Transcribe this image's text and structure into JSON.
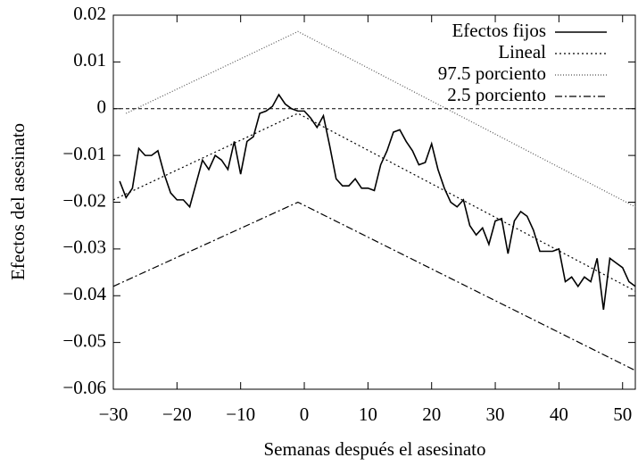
{
  "chart_data": {
    "type": "line",
    "xlabel": "Semanas después el asesinato",
    "ylabel": "Efectos del asesinato",
    "xlim": [
      -30,
      52
    ],
    "ylim": [
      -0.06,
      0.02
    ],
    "xticks": [
      {
        "value": -30,
        "label": "−30"
      },
      {
        "value": -20,
        "label": "−20"
      },
      {
        "value": -10,
        "label": "−10"
      },
      0,
      10,
      20,
      30,
      40,
      50
    ],
    "yticks": [
      {
        "value": -0.06,
        "label": "−0.06"
      },
      {
        "value": -0.05,
        "label": "−0.05"
      },
      {
        "value": -0.04,
        "label": "−0.04"
      },
      {
        "value": -0.03,
        "label": "−0.03"
      },
      {
        "value": -0.02,
        "label": "−0.02"
      },
      {
        "value": -0.01,
        "label": "−0.01"
      },
      0,
      0.01,
      0.02
    ],
    "hline": 0,
    "legend": "upper right",
    "series": [
      {
        "name": "Efectos fijos",
        "color": "#000000",
        "dash": "none",
        "x": [
          -29,
          -28,
          -27,
          -26,
          -25,
          -24,
          -23,
          -22,
          -21,
          -20,
          -19,
          -18,
          -17,
          -16,
          -15,
          -14,
          -13,
          -12,
          -11,
          -10,
          -9,
          -8,
          -7,
          -6,
          -5,
          -4,
          -3,
          -2,
          -1,
          0,
          1,
          2,
          3,
          4,
          5,
          6,
          7,
          8,
          9,
          10,
          11,
          12,
          13,
          14,
          15,
          16,
          17,
          18,
          19,
          20,
          21,
          22,
          23,
          24,
          25,
          26,
          27,
          28,
          29,
          30,
          31,
          32,
          33,
          34,
          35,
          36,
          37,
          38,
          39,
          40,
          41,
          42,
          43,
          44,
          45,
          46,
          47,
          48,
          49,
          50,
          51,
          52
        ],
        "values": [
          -0.0155,
          -0.019,
          -0.017,
          -0.0085,
          -0.01,
          -0.01,
          -0.009,
          -0.014,
          -0.018,
          -0.0195,
          -0.0195,
          -0.021,
          -0.016,
          -0.011,
          -0.013,
          -0.01,
          -0.011,
          -0.013,
          -0.007,
          -0.014,
          -0.007,
          -0.006,
          -0.001,
          -0.0005,
          0.0005,
          0.003,
          0.001,
          0,
          -0.0005,
          -0.0005,
          -0.002,
          -0.004,
          -0.0015,
          -0.008,
          -0.015,
          -0.0165,
          -0.0165,
          -0.015,
          -0.017,
          -0.017,
          -0.0175,
          -0.012,
          -0.009,
          -0.005,
          -0.0045,
          -0.007,
          -0.009,
          -0.012,
          -0.0115,
          -0.0075,
          -0.013,
          -0.017,
          -0.02,
          -0.021,
          -0.0195,
          -0.025,
          -0.027,
          -0.0255,
          -0.029,
          -0.024,
          -0.0235,
          -0.031,
          -0.024,
          -0.022,
          -0.023,
          -0.026,
          -0.0305,
          -0.0305,
          -0.0305,
          -0.03,
          -0.037,
          -0.036,
          -0.038,
          -0.036,
          -0.037,
          -0.032,
          -0.043,
          -0.032,
          -0.033,
          -0.034,
          -0.037,
          -0.038
        ]
      },
      {
        "name": "Lineal",
        "color": "#000000",
        "dash": "2 3",
        "x": [
          -30,
          -1,
          52
        ],
        "values": [
          -0.0195,
          -0.001,
          -0.039
        ]
      },
      {
        "name": "97.5 porciento",
        "color": "#555555",
        "dash": "1 2",
        "x": [
          -28,
          -1,
          52
        ],
        "values": [
          -0.001,
          0.0165,
          -0.021
        ]
      },
      {
        "name": "2.5 porciento",
        "color": "#000000",
        "dash": "8 3 2 3",
        "x": [
          -30,
          -1,
          52
        ],
        "values": [
          -0.038,
          -0.02,
          -0.056
        ]
      }
    ]
  }
}
